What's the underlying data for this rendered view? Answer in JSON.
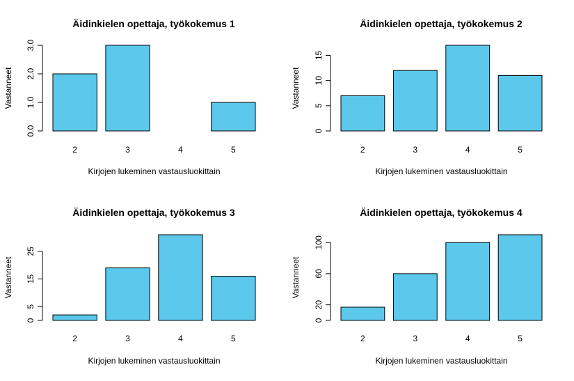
{
  "chart_data": [
    {
      "type": "bar",
      "title": "Äidinkielen opettaja, työkokemus 1",
      "xlabel": "Kirjojen lukeminen vastausluokittain",
      "ylabel": "Vastanneet",
      "categories": [
        "2",
        "3",
        "4",
        "5"
      ],
      "values": [
        2,
        3,
        0,
        1
      ],
      "ylim": [
        0,
        3
      ],
      "yticks": [
        "0.0",
        "1.0",
        "2.0",
        "3.0"
      ],
      "bar_color": "#5bc8ec",
      "grid": false
    },
    {
      "type": "bar",
      "title": "Äidinkielen opettaja, työkokemus 2",
      "xlabel": "Kirjojen lukeminen vastausluokittain",
      "ylabel": "Vastanneet",
      "categories": [
        "2",
        "3",
        "4",
        "5"
      ],
      "values": [
        7,
        12,
        17,
        11
      ],
      "ylim": [
        0,
        17
      ],
      "yticks": [
        "0",
        "5",
        "10",
        "15"
      ],
      "bar_color": "#5bc8ec",
      "grid": false
    },
    {
      "type": "bar",
      "title": "Äidinkielen opettaja, työkokemus 3",
      "xlabel": "Kirjojen lukeminen vastausluokittain",
      "ylabel": "Vastanneet",
      "categories": [
        "2",
        "3",
        "4",
        "5"
      ],
      "values": [
        2,
        19,
        31,
        16
      ],
      "ylim": [
        0,
        31
      ],
      "yticks": [
        "0",
        "5",
        "15",
        "25"
      ],
      "bar_color": "#5bc8ec",
      "grid": false
    },
    {
      "type": "bar",
      "title": "Äidinkielen opettaja, työkokemus 4",
      "xlabel": "Kirjojen lukeminen vastausluokittain",
      "ylabel": "Vastanneet",
      "categories": [
        "2",
        "3",
        "4",
        "5"
      ],
      "values": [
        17,
        60,
        100,
        110
      ],
      "ylim": [
        0,
        110
      ],
      "yticks": [
        "0",
        "20",
        "60",
        "100"
      ],
      "bar_color": "#5bc8ec",
      "grid": false
    }
  ]
}
